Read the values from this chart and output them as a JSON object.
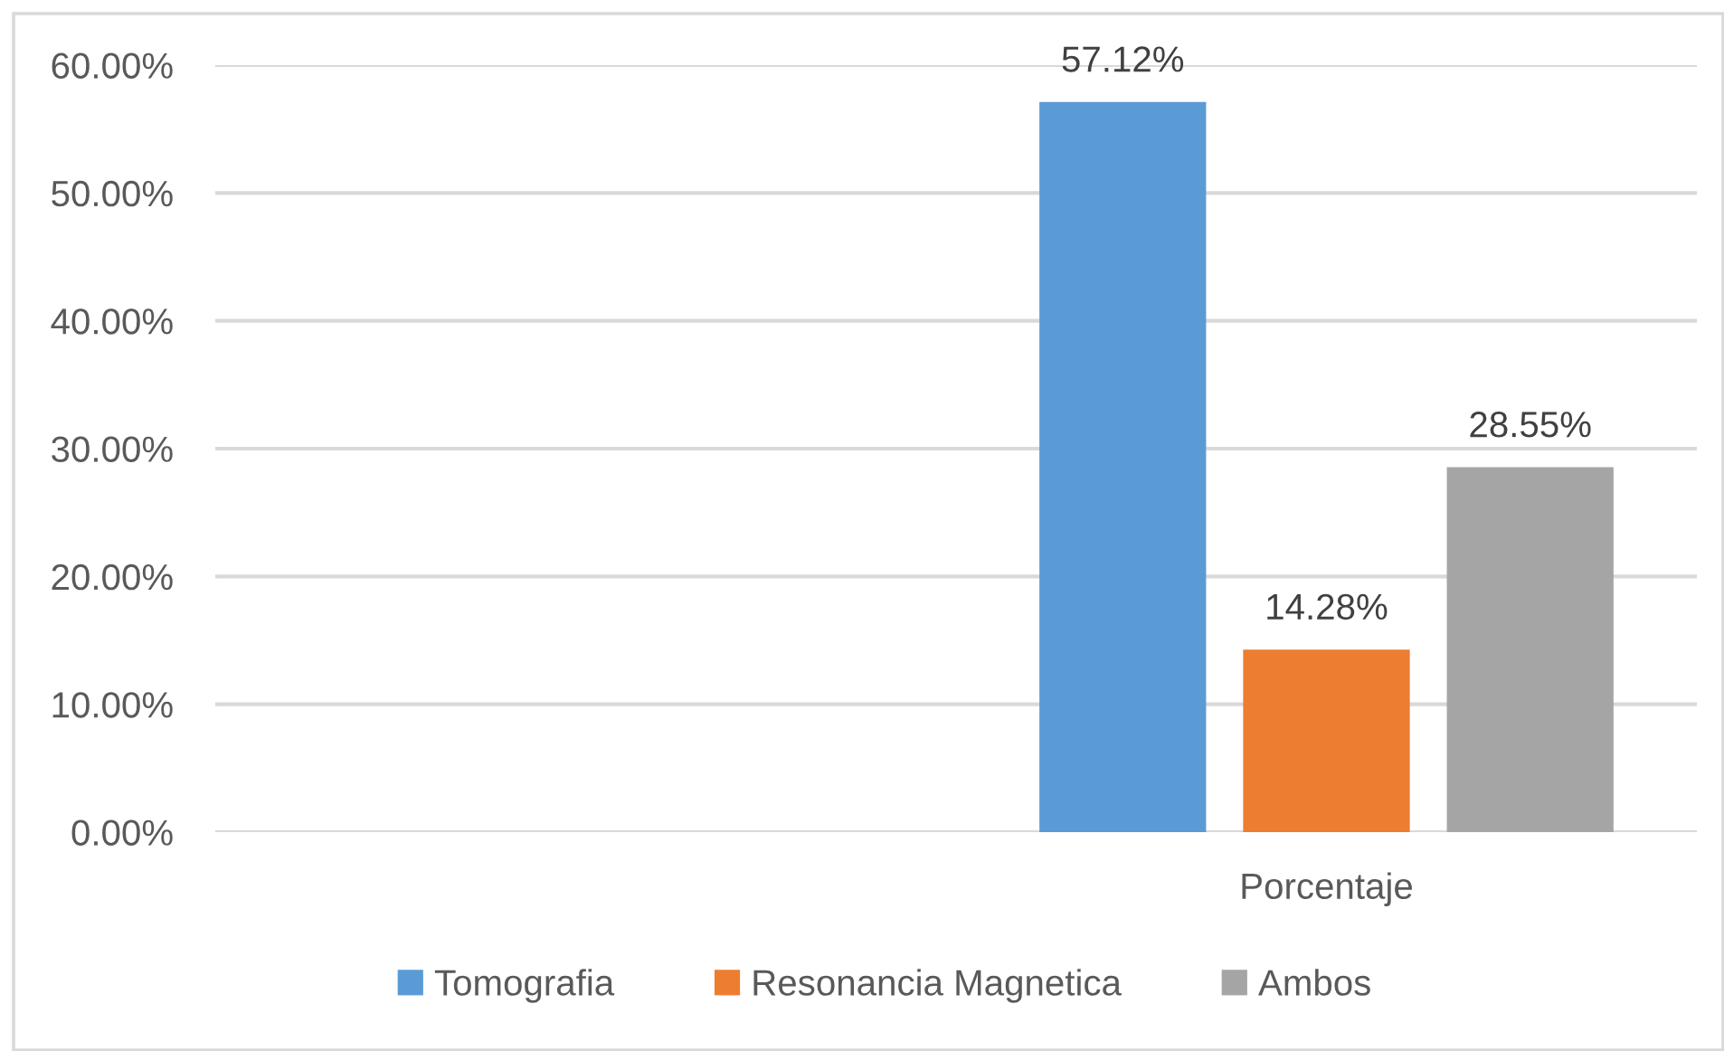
{
  "chart_data": {
    "type": "bar",
    "categories": [
      null,
      "Porcentaje"
    ],
    "series": [
      {
        "name": "Tomografia",
        "color": "#5b9bd5",
        "values": [
          null,
          57.12
        ],
        "value_labels": [
          null,
          "57.12%"
        ]
      },
      {
        "name": "Resonancia Magnetica",
        "color": "#ed7d31",
        "values": [
          null,
          14.28
        ],
        "value_labels": [
          null,
          "14.28%"
        ]
      },
      {
        "name": "Ambos",
        "color": "#a5a5a5",
        "values": [
          null,
          28.55
        ],
        "value_labels": [
          null,
          "28.55%"
        ]
      }
    ],
    "ylim": [
      0,
      60
    ],
    "yticks": [
      {
        "value": 0,
        "label": "0.00%"
      },
      {
        "value": 10,
        "label": "10.00%"
      },
      {
        "value": 20,
        "label": "20.00%"
      },
      {
        "value": 30,
        "label": "30.00%"
      },
      {
        "value": 40,
        "label": "40.00%"
      },
      {
        "value": 50,
        "label": "50.00%"
      },
      {
        "value": 60,
        "label": "60.00%"
      }
    ],
    "grid": "y",
    "legend": "bottom"
  }
}
